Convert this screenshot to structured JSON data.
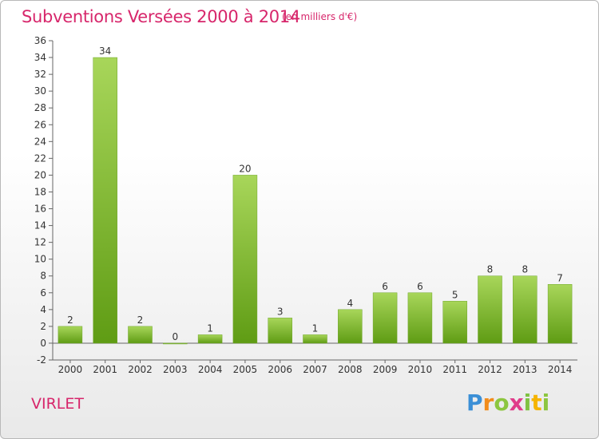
{
  "header": {
    "title": "Subventions Versées 2000 à 2014",
    "unit": "(en milliers d'€)"
  },
  "commune": "VIRLET",
  "logo": {
    "letters": [
      "P",
      "r",
      "o",
      "x",
      "i",
      "t",
      "i"
    ],
    "text": "Proxiti"
  },
  "colors": {
    "accent": "#d7266b",
    "bar_top": "#a8d65a",
    "bar_bottom": "#5f9c14"
  },
  "chart_data": {
    "type": "bar",
    "title": "Subventions Versées 2000 à 2014",
    "subtitle": "(en milliers d'€)",
    "categories": [
      "2000",
      "2001",
      "2002",
      "2003",
      "2004",
      "2005",
      "2006",
      "2007",
      "2008",
      "2009",
      "2010",
      "2011",
      "2012",
      "2013",
      "2014"
    ],
    "values": [
      2,
      34,
      2,
      0,
      1,
      20,
      3,
      1,
      4,
      6,
      6,
      5,
      8,
      8,
      7
    ],
    "ylim": [
      -2,
      36
    ],
    "yticks": [
      -2,
      0,
      2,
      4,
      6,
      8,
      10,
      12,
      14,
      16,
      18,
      20,
      22,
      24,
      26,
      28,
      30,
      32,
      34,
      36
    ],
    "grid": false,
    "xlabel": "",
    "ylabel": ""
  }
}
